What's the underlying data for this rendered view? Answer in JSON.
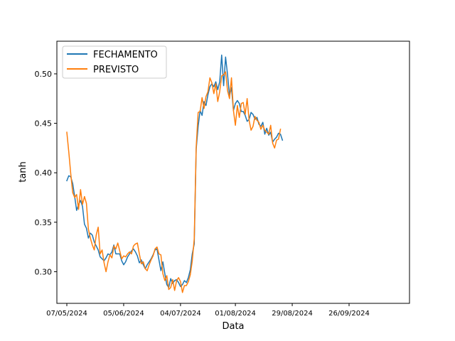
{
  "chart_data": {
    "type": "line",
    "title": "",
    "xlabel": "Data",
    "ylabel": "tanh",
    "x_axis": {
      "min_day": -5,
      "max_day": 124,
      "ticks": [
        {
          "day": 0,
          "label": "07/05/2024"
        },
        {
          "day": 29,
          "label": "05/06/2024"
        },
        {
          "day": 58,
          "label": "04/07/2024"
        },
        {
          "day": 86,
          "label": "01/08/2024"
        },
        {
          "day": 115,
          "label": "29/08/2024"
        },
        {
          "day": 144,
          "label": "26/09/2024"
        }
      ]
    },
    "ylim": [
      0.268,
      0.533
    ],
    "y_ticks": [
      {
        "value": 0.3,
        "label": "0.30"
      },
      {
        "value": 0.35,
        "label": "0.35"
      },
      {
        "value": 0.4,
        "label": "0.40"
      },
      {
        "value": 0.45,
        "label": "0.45"
      },
      {
        "value": 0.5,
        "label": "0.50"
      }
    ],
    "legend_position": "top-left",
    "series": [
      {
        "name": "FECHAMENTO",
        "color": "#1f77b4",
        "points": [
          [
            0,
            0.392
          ],
          [
            1,
            0.397
          ],
          [
            2,
            0.396
          ],
          [
            3,
            0.389
          ],
          [
            4,
            0.376
          ],
          [
            5,
            0.362
          ],
          [
            6,
            0.368
          ],
          [
            7,
            0.372
          ],
          [
            8,
            0.366
          ],
          [
            9,
            0.348
          ],
          [
            10,
            0.344
          ],
          [
            11,
            0.334
          ],
          [
            12,
            0.339
          ],
          [
            13,
            0.337
          ],
          [
            14,
            0.33
          ],
          [
            15,
            0.326
          ],
          [
            16,
            0.322
          ],
          [
            17,
            0.315
          ],
          [
            18,
            0.313
          ],
          [
            19,
            0.311
          ],
          [
            20,
            0.314
          ],
          [
            21,
            0.318
          ],
          [
            22,
            0.317
          ],
          [
            23,
            0.32
          ],
          [
            24,
            0.327
          ],
          [
            25,
            0.318
          ],
          [
            26,
            0.318
          ],
          [
            27,
            0.318
          ],
          [
            28,
            0.311
          ],
          [
            29,
            0.307
          ],
          [
            30,
            0.31
          ],
          [
            31,
            0.315
          ],
          [
            32,
            0.318
          ],
          [
            33,
            0.321
          ],
          [
            34,
            0.323
          ],
          [
            35,
            0.32
          ],
          [
            36,
            0.316
          ],
          [
            37,
            0.309
          ],
          [
            38,
            0.312
          ],
          [
            39,
            0.307
          ],
          [
            40,
            0.303
          ],
          [
            41,
            0.307
          ],
          [
            42,
            0.31
          ],
          [
            43,
            0.313
          ],
          [
            44,
            0.317
          ],
          [
            45,
            0.322
          ],
          [
            46,
            0.323
          ],
          [
            47,
            0.312
          ],
          [
            48,
            0.301
          ],
          [
            49,
            0.31
          ],
          [
            50,
            0.298
          ],
          [
            51,
            0.287
          ],
          [
            52,
            0.284
          ],
          [
            53,
            0.293
          ],
          [
            54,
            0.288
          ],
          [
            55,
            0.291
          ],
          [
            56,
            0.292
          ],
          [
            57,
            0.289
          ],
          [
            58,
            0.285
          ],
          [
            59,
            0.287
          ],
          [
            60,
            0.291
          ],
          [
            61,
            0.289
          ],
          [
            62,
            0.294
          ],
          [
            63,
            0.302
          ],
          [
            64,
            0.318
          ],
          [
            65,
            0.328
          ],
          [
            66,
            0.424
          ],
          [
            67,
            0.447
          ],
          [
            68,
            0.463
          ],
          [
            69,
            0.458
          ],
          [
            70,
            0.472
          ],
          [
            71,
            0.468
          ],
          [
            72,
            0.479
          ],
          [
            73,
            0.487
          ],
          [
            74,
            0.49
          ],
          [
            75,
            0.487
          ],
          [
            76,
            0.492
          ],
          [
            77,
            0.484
          ],
          [
            78,
            0.492
          ],
          [
            79,
            0.519
          ],
          [
            80,
            0.488
          ],
          [
            81,
            0.517
          ],
          [
            82,
            0.499
          ],
          [
            83,
            0.478
          ],
          [
            84,
            0.486
          ],
          [
            85,
            0.463
          ],
          [
            86,
            0.47
          ],
          [
            87,
            0.473
          ],
          [
            88,
            0.47
          ],
          [
            89,
            0.462
          ],
          [
            90,
            0.462
          ],
          [
            91,
            0.458
          ],
          [
            92,
            0.452
          ],
          [
            93,
            0.454
          ],
          [
            94,
            0.461
          ],
          [
            95,
            0.459
          ],
          [
            96,
            0.454
          ],
          [
            97,
            0.456
          ],
          [
            98,
            0.449
          ],
          [
            99,
            0.447
          ],
          [
            100,
            0.451
          ],
          [
            101,
            0.439
          ],
          [
            102,
            0.445
          ],
          [
            103,
            0.438
          ],
          [
            104,
            0.441
          ],
          [
            105,
            0.431
          ],
          [
            106,
            0.434
          ],
          [
            107,
            0.436
          ],
          [
            108,
            0.44
          ],
          [
            109,
            0.439
          ],
          [
            110,
            0.433
          ]
        ]
      },
      {
        "name": "PREVISTO",
        "color": "#ff7f0e",
        "points": [
          [
            0,
            0.441
          ],
          [
            1,
            0.421
          ],
          [
            2,
            0.399
          ],
          [
            3,
            0.38
          ],
          [
            4,
            0.375
          ],
          [
            5,
            0.378
          ],
          [
            6,
            0.363
          ],
          [
            7,
            0.383
          ],
          [
            8,
            0.368
          ],
          [
            9,
            0.376
          ],
          [
            10,
            0.369
          ],
          [
            11,
            0.343
          ],
          [
            12,
            0.334
          ],
          [
            13,
            0.327
          ],
          [
            14,
            0.322
          ],
          [
            15,
            0.337
          ],
          [
            16,
            0.345
          ],
          [
            17,
            0.318
          ],
          [
            18,
            0.322
          ],
          [
            19,
            0.309
          ],
          [
            20,
            0.3
          ],
          [
            21,
            0.31
          ],
          [
            22,
            0.317
          ],
          [
            23,
            0.314
          ],
          [
            24,
            0.326
          ],
          [
            25,
            0.323
          ],
          [
            26,
            0.329
          ],
          [
            27,
            0.321
          ],
          [
            28,
            0.313
          ],
          [
            29,
            0.316
          ],
          [
            30,
            0.315
          ],
          [
            31,
            0.318
          ],
          [
            32,
            0.32
          ],
          [
            33,
            0.318
          ],
          [
            34,
            0.326
          ],
          [
            35,
            0.328
          ],
          [
            36,
            0.329
          ],
          [
            37,
            0.318
          ],
          [
            38,
            0.308
          ],
          [
            39,
            0.31
          ],
          [
            40,
            0.303
          ],
          [
            41,
            0.301
          ],
          [
            42,
            0.307
          ],
          [
            43,
            0.312
          ],
          [
            44,
            0.316
          ],
          [
            45,
            0.323
          ],
          [
            46,
            0.325
          ],
          [
            47,
            0.318
          ],
          [
            48,
            0.317
          ],
          [
            49,
            0.298
          ],
          [
            50,
            0.291
          ],
          [
            51,
            0.296
          ],
          [
            52,
            0.282
          ],
          [
            53,
            0.284
          ],
          [
            54,
            0.292
          ],
          [
            55,
            0.281
          ],
          [
            56,
            0.291
          ],
          [
            57,
            0.294
          ],
          [
            58,
            0.29
          ],
          [
            59,
            0.279
          ],
          [
            60,
            0.286
          ],
          [
            61,
            0.286
          ],
          [
            62,
            0.29
          ],
          [
            63,
            0.297
          ],
          [
            64,
            0.311
          ],
          [
            65,
            0.333
          ],
          [
            66,
            0.426
          ],
          [
            67,
            0.461
          ],
          [
            68,
            0.462
          ],
          [
            69,
            0.476
          ],
          [
            70,
            0.465
          ],
          [
            71,
            0.477
          ],
          [
            72,
            0.482
          ],
          [
            73,
            0.496
          ],
          [
            74,
            0.491
          ],
          [
            75,
            0.48
          ],
          [
            76,
            0.49
          ],
          [
            77,
            0.472
          ],
          [
            78,
            0.482
          ],
          [
            79,
            0.498
          ],
          [
            80,
            0.499
          ],
          [
            81,
            0.502
          ],
          [
            82,
            0.483
          ],
          [
            83,
            0.475
          ],
          [
            84,
            0.496
          ],
          [
            85,
            0.463
          ],
          [
            86,
            0.448
          ],
          [
            87,
            0.468
          ],
          [
            88,
            0.456
          ],
          [
            89,
            0.47
          ],
          [
            90,
            0.471
          ],
          [
            91,
            0.459
          ],
          [
            92,
            0.475
          ],
          [
            93,
            0.453
          ],
          [
            94,
            0.443
          ],
          [
            95,
            0.447
          ],
          [
            96,
            0.457
          ],
          [
            97,
            0.453
          ],
          [
            98,
            0.451
          ],
          [
            99,
            0.444
          ],
          [
            100,
            0.448
          ],
          [
            101,
            0.443
          ],
          [
            102,
            0.441
          ],
          [
            103,
            0.439
          ],
          [
            104,
            0.448
          ],
          [
            105,
            0.43
          ],
          [
            106,
            0.425
          ],
          [
            107,
            0.433
          ],
          [
            108,
            0.434
          ],
          [
            109,
            0.444
          ]
        ]
      }
    ]
  }
}
